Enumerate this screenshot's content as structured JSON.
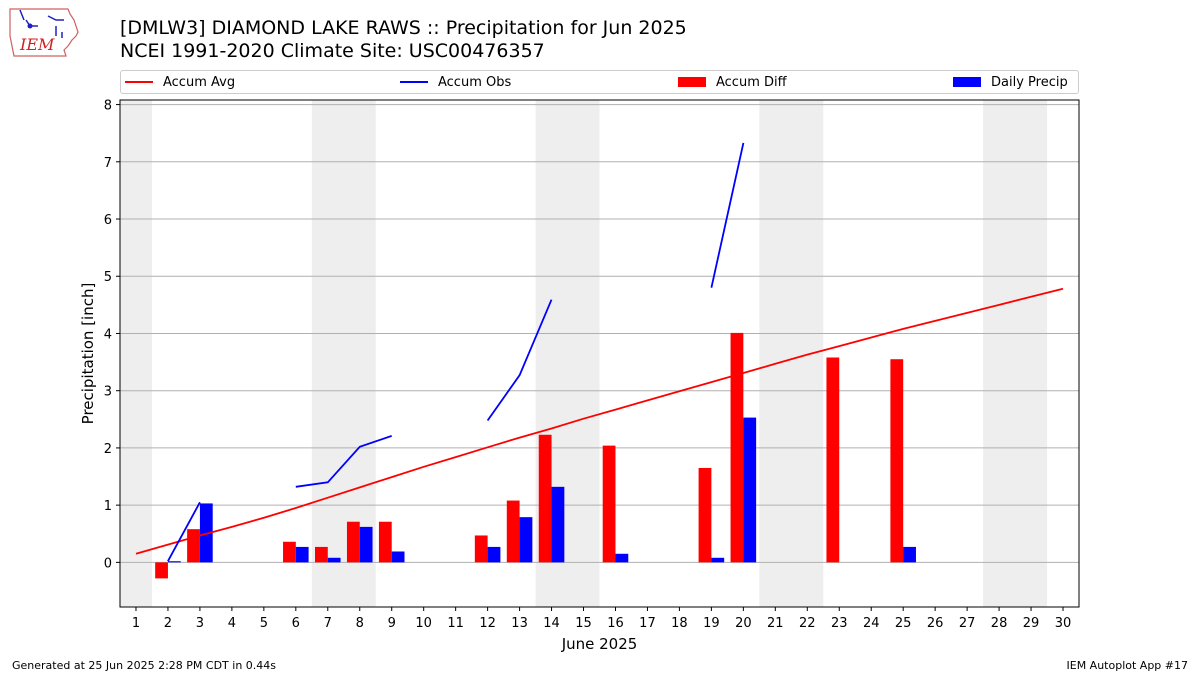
{
  "header": {
    "title": "[DMLW3] DIAMOND LAKE RAWS :: Precipitation for Jun 2025",
    "subtitle": "NCEI 1991-2020 Climate Site: USC00476357"
  },
  "logo": {
    "text": "IEM",
    "icon": "iem-iowa-logo"
  },
  "legend": {
    "items": [
      {
        "label": "Accum Avg",
        "kind": "line",
        "color": "#ff0000"
      },
      {
        "label": "Accum Obs",
        "kind": "line",
        "color": "#0000ff"
      },
      {
        "label": "Accum Diff",
        "kind": "bar",
        "color": "#ff0000"
      },
      {
        "label": "Daily Precip",
        "kind": "bar",
        "color": "#0000ff"
      }
    ]
  },
  "footer": {
    "left": "Generated at 25 Jun 2025 2:28 PM CDT in 0.44s",
    "right": "IEM Autoplot App #17"
  },
  "chart_data": {
    "type": "bar",
    "xlabel": "June 2025",
    "ylabel": "Precipitation [inch]",
    "x": [
      1,
      2,
      3,
      4,
      5,
      6,
      7,
      8,
      9,
      10,
      11,
      12,
      13,
      14,
      15,
      16,
      17,
      18,
      19,
      20,
      21,
      22,
      23,
      24,
      25,
      26,
      27,
      28,
      29,
      30
    ],
    "xlim": [
      0.5,
      30.5
    ],
    "ylim": [
      -0.78,
      8.08
    ],
    "yticks": [
      0,
      1,
      2,
      3,
      4,
      5,
      6,
      7,
      8
    ],
    "grid": "y",
    "legend_position": "top",
    "weekend_shading": [
      [
        0.5,
        1.5
      ],
      [
        6.5,
        8.5
      ],
      [
        13.5,
        15.5
      ],
      [
        20.5,
        22.5
      ],
      [
        27.5,
        29.5
      ]
    ],
    "weekend_color": "#eeeeee",
    "series": [
      {
        "name": "Accum Avg",
        "kind": "line",
        "color": "#ff0000",
        "values": [
          0.15,
          0.31,
          0.47,
          0.62,
          0.78,
          0.95,
          1.13,
          1.31,
          1.49,
          1.67,
          1.84,
          2.01,
          2.18,
          2.34,
          2.51,
          2.67,
          2.83,
          2.99,
          3.15,
          3.31,
          3.47,
          3.63,
          3.78,
          3.93,
          4.08,
          4.22,
          4.36,
          4.5,
          4.64,
          4.78
        ]
      },
      {
        "name": "Accum Obs",
        "kind": "line",
        "color": "#0000ff",
        "values": [
          null,
          0.02,
          1.05,
          null,
          null,
          1.32,
          1.4,
          2.02,
          2.21,
          null,
          null,
          2.48,
          3.27,
          4.59,
          null,
          null,
          null,
          null,
          4.8,
          7.33,
          null,
          null,
          null,
          null,
          null,
          null,
          null,
          null,
          null,
          null
        ]
      },
      {
        "name": "Accum Diff",
        "kind": "bar",
        "color": "#ff0000",
        "values": [
          null,
          -0.28,
          0.58,
          null,
          null,
          0.36,
          0.27,
          0.71,
          0.71,
          null,
          null,
          0.47,
          1.08,
          2.23,
          null,
          2.04,
          null,
          null,
          1.65,
          4.01,
          null,
          null,
          3.58,
          null,
          3.55,
          null,
          null,
          null,
          null,
          null
        ]
      },
      {
        "name": "Daily Precip",
        "kind": "bar",
        "color": "#0000ff",
        "values": [
          null,
          0.02,
          1.03,
          null,
          null,
          0.27,
          0.08,
          0.62,
          0.19,
          null,
          null,
          0.27,
          0.79,
          1.32,
          null,
          0.15,
          null,
          null,
          0.08,
          2.53,
          null,
          null,
          null,
          null,
          0.27,
          null,
          null,
          null,
          null,
          null
        ]
      }
    ]
  }
}
